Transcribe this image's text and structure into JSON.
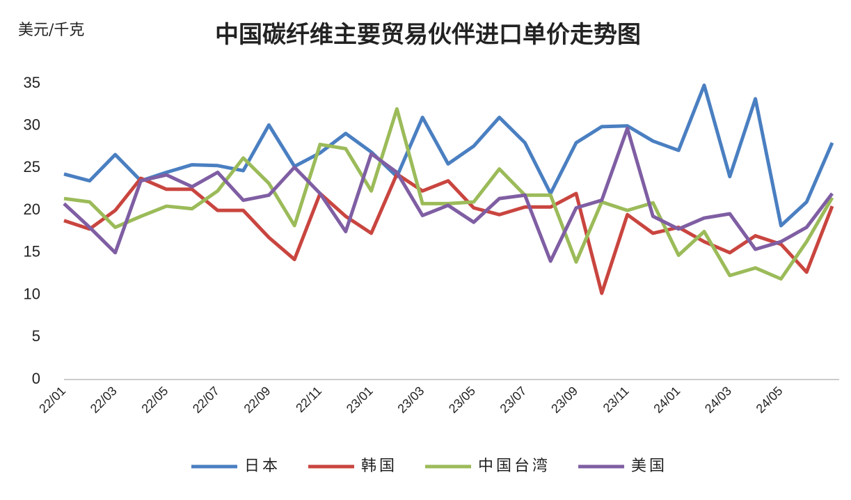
{
  "chart_data": {
    "type": "line",
    "title": "中国碳纤维主要贸易伙伴进口单价走势图",
    "y_label": "美元/千克",
    "categories": [
      "22/01",
      null,
      "22/03",
      null,
      "22/05",
      null,
      "22/07",
      null,
      "22/09",
      null,
      "22/11",
      null,
      "23/01",
      null,
      "23/03",
      null,
      "23/05",
      null,
      "23/07",
      null,
      "23/09",
      null,
      "23/11",
      null,
      "24/01",
      null,
      "24/03",
      null,
      "24/05",
      null,
      null
    ],
    "series": [
      {
        "name": "日本",
        "color": "#4a7fc1",
        "values": [
          24.3,
          23.5,
          26.6,
          23.5,
          24.5,
          25.4,
          25.3,
          24.7,
          30.1,
          25.2,
          26.8,
          29.1,
          26.9,
          24.0,
          31.0,
          25.5,
          27.6,
          31.0,
          28.0,
          22.0,
          28.0,
          29.9,
          30.0,
          28.2,
          27.1,
          34.8,
          24.0,
          33.2,
          18.2,
          21.0,
          28.0
        ]
      },
      {
        "name": "韩国",
        "color": "#c9453f",
        "values": [
          18.8,
          17.8,
          20.0,
          23.8,
          22.5,
          22.5,
          20.0,
          20.0,
          16.8,
          14.2,
          22.0,
          19.3,
          17.3,
          24.3,
          22.3,
          23.5,
          20.3,
          19.5,
          20.4,
          20.4,
          22.0,
          10.2,
          19.5,
          17.3,
          18.0,
          16.3,
          15.0,
          17.0,
          16.0,
          12.7,
          20.5
        ]
      },
      {
        "name": "中国台湾",
        "color": "#9bbb59",
        "values": [
          21.4,
          21.0,
          18.0,
          19.3,
          20.5,
          20.2,
          22.3,
          26.2,
          23.2,
          18.2,
          27.8,
          27.3,
          22.3,
          32.0,
          20.8,
          20.8,
          21.0,
          24.9,
          21.8,
          21.8,
          13.9,
          21.0,
          20.0,
          20.9,
          14.7,
          17.5,
          12.3,
          13.2,
          11.9,
          16.3,
          21.5
        ]
      },
      {
        "name": "美国",
        "color": "#7f5ea3",
        "values": [
          20.8,
          18.0,
          15.0,
          23.5,
          24.2,
          22.8,
          24.5,
          21.2,
          21.8,
          25.1,
          22.0,
          17.5,
          26.7,
          24.5,
          19.4,
          20.6,
          18.6,
          21.4,
          21.8,
          14.0,
          20.3,
          21.2,
          29.7,
          19.3,
          17.8,
          19.1,
          19.6,
          15.4,
          16.3,
          18.0,
          22.0
        ]
      }
    ],
    "ylim": [
      0,
      35
    ],
    "yticks": [
      0,
      5,
      10,
      15,
      20,
      25,
      30,
      35
    ],
    "grid": false,
    "legend": "bottom"
  }
}
